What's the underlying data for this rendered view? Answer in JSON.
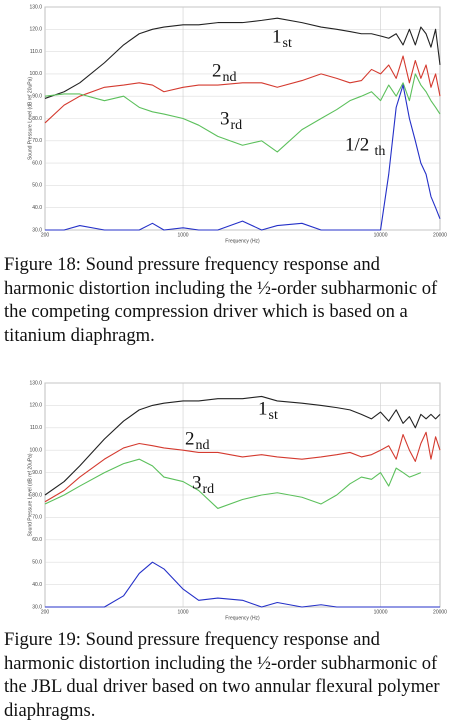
{
  "chart_data": [
    {
      "type": "line",
      "xscale": "log",
      "grid": true,
      "xlabel": "Frequency (Hz)",
      "ylabel": "Sound Pressure Level (dB ref 20uPa)",
      "xlim": [
        200,
        20000
      ],
      "xticks": [
        200,
        1000,
        10000,
        20000
      ],
      "ylim": [
        30,
        130
      ],
      "yticks": [
        {
          "value": 30,
          "label": "30.0"
        },
        {
          "value": 40,
          "label": "40.0"
        },
        {
          "value": 50,
          "label": "50.0"
        },
        {
          "value": 60,
          "label": "60.0"
        },
        {
          "value": 70,
          "label": "70.0"
        },
        {
          "value": 80,
          "label": "80.0"
        },
        {
          "value": 90,
          "label": "90.0"
        },
        {
          "value": 100,
          "label": "100.0"
        },
        {
          "value": 110,
          "label": "110.0"
        },
        {
          "value": 120,
          "label": "120.0"
        },
        {
          "value": 130,
          "label": "130.0"
        }
      ],
      "x": [
        200,
        250,
        300,
        400,
        500,
        600,
        700,
        800,
        1000,
        1200,
        1500,
        2000,
        2500,
        3000,
        4000,
        5000,
        6000,
        7000,
        8000,
        9000,
        10000,
        11000,
        12000,
        13000,
        14000,
        15000,
        16000,
        17000,
        18000,
        19000,
        20000
      ],
      "series": [
        {
          "color": "#222222",
          "values": [
            89,
            92,
            96,
            105,
            113,
            118,
            120,
            121,
            122,
            122,
            123,
            123,
            124,
            125,
            123,
            121,
            120,
            119,
            118,
            118,
            117,
            116,
            118,
            113,
            120,
            113,
            121,
            118,
            112,
            120,
            104
          ]
        },
        {
          "color": "#d43a2f",
          "values": [
            78,
            86,
            90,
            94,
            95,
            96,
            95,
            92,
            94,
            95,
            95,
            96,
            96,
            94,
            97,
            100,
            98,
            96,
            97,
            102,
            100,
            104,
            98,
            108,
            96,
            106,
            98,
            104,
            94,
            100,
            90
          ]
        },
        {
          "color": "#5cc05c",
          "values": [
            90,
            91,
            91,
            88,
            90,
            85,
            83,
            82,
            80,
            77,
            72,
            68,
            70,
            65,
            75,
            80,
            84,
            88,
            90,
            92,
            88,
            95,
            90,
            96,
            88,
            100,
            95,
            92,
            88,
            85,
            82
          ]
        },
        {
          "color": "#2430c8",
          "values": [
            30,
            30,
            32,
            30,
            30,
            30,
            33,
            30,
            31,
            30,
            30,
            34,
            30,
            32,
            33,
            30,
            30,
            30,
            30,
            30,
            30,
            55,
            85,
            95,
            80,
            70,
            60,
            55,
            45,
            40,
            35
          ]
        }
      ],
      "annotations": [
        {
          "text": "1",
          "sub": "st"
        },
        {
          "text": "2",
          "sub": "nd"
        },
        {
          "text": "3",
          "sub": "rd"
        },
        {
          "text": "1/2",
          "sub": "th"
        }
      ],
      "caption": "Figure 18: Sound pressure frequency response and harmonic distortion including the ½-order subharmonic of the competing compression driver which is based on a titanium diaphragm."
    },
    {
      "type": "line",
      "xscale": "log",
      "grid": true,
      "xlabel": "Frequency (Hz)",
      "ylabel": "Sound Pressure Level (dB ref 20uPa)",
      "xlim": [
        200,
        20000
      ],
      "xticks": [
        200,
        1000,
        10000,
        20000
      ],
      "ylim": [
        30,
        130
      ],
      "yticks": [
        {
          "value": 30,
          "label": "30.0"
        },
        {
          "value": 40,
          "label": "40.0"
        },
        {
          "value": 50,
          "label": "50.0"
        },
        {
          "value": 60,
          "label": "60.0"
        },
        {
          "value": 70,
          "label": "70.0"
        },
        {
          "value": 80,
          "label": "80.0"
        },
        {
          "value": 90,
          "label": "90.0"
        },
        {
          "value": 100,
          "label": "100.0"
        },
        {
          "value": 110,
          "label": "110.0"
        },
        {
          "value": 120,
          "label": "120.0"
        },
        {
          "value": 130,
          "label": "130.0"
        }
      ],
      "x": [
        200,
        250,
        300,
        400,
        500,
        600,
        700,
        800,
        1000,
        1200,
        1500,
        2000,
        2500,
        3000,
        4000,
        5000,
        6000,
        7000,
        8000,
        9000,
        10000,
        11000,
        12000,
        13000,
        14000,
        15000,
        16000,
        17000,
        18000,
        19000,
        20000
      ],
      "series": [
        {
          "color": "#222222",
          "values": [
            80,
            86,
            93,
            105,
            113,
            118,
            120,
            121,
            122,
            122,
            123,
            123,
            124,
            122,
            121,
            120,
            119,
            118,
            116,
            114,
            117,
            113,
            118,
            112,
            115,
            110,
            116,
            114,
            116,
            114,
            116
          ]
        },
        {
          "color": "#d43a2f",
          "values": [
            77,
            82,
            88,
            96,
            101,
            103,
            102,
            101,
            100,
            99,
            99,
            97,
            98,
            97,
            96,
            97,
            98,
            99,
            97,
            98,
            100,
            102,
            96,
            107,
            100,
            95,
            103,
            108,
            96,
            106,
            100
          ]
        },
        {
          "color": "#5cc05c",
          "values": [
            76,
            80,
            84,
            90,
            94,
            96,
            93,
            88,
            86,
            82,
            74,
            78,
            80,
            81,
            79,
            76,
            80,
            85,
            88,
            87,
            90,
            84,
            92,
            90,
            88,
            89,
            90,
            null,
            null,
            null,
            null
          ]
        },
        {
          "color": "#2430c8",
          "values": [
            30,
            30,
            30,
            30,
            35,
            45,
            50,
            47,
            38,
            33,
            34,
            33,
            30,
            32,
            30,
            31,
            30,
            30,
            30,
            30,
            30,
            30,
            30,
            30,
            30,
            30,
            30,
            30,
            30,
            30,
            30
          ]
        }
      ],
      "annotations": [
        {
          "text": "1",
          "sub": "st"
        },
        {
          "text": "2",
          "sub": "nd"
        },
        {
          "text": "3",
          "sub": "rd"
        }
      ],
      "caption": "Figure 19: Sound pressure frequency response and harmonic distortion including the ½-order subharmonic of the JBL dual driver based on two annular flexural polymer diaphragms."
    }
  ]
}
